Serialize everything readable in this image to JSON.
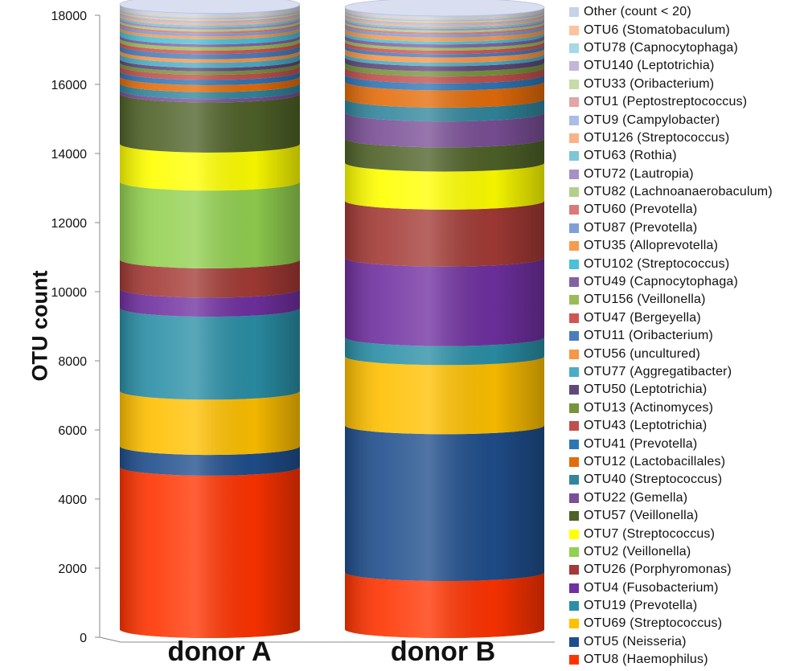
{
  "chart_data": {
    "type": "bar",
    "stacked": true,
    "style": "3d-cylinder",
    "categories": [
      "donor A",
      "donor B"
    ],
    "ylabel": "OTU count",
    "xlabel": "",
    "ylim": [
      0,
      18000
    ],
    "yticks": [
      0,
      2000,
      4000,
      6000,
      8000,
      10000,
      12000,
      14000,
      16000,
      18000
    ],
    "legend_position": "right",
    "series": [
      {
        "name": "OTU8 (Haemophilus)",
        "color": "#ff3300",
        "values": [
          4700,
          1650
        ]
      },
      {
        "name": "OTU5 (Neisseria)",
        "color": "#1f4e8c",
        "values": [
          600,
          4250
        ]
      },
      {
        "name": "OTU69 (Streptococcus)",
        "color": "#ffc000",
        "values": [
          1600,
          2000
        ]
      },
      {
        "name": "OTU19 (Prevotella)",
        "color": "#2a8fa6",
        "values": [
          2400,
          550
        ]
      },
      {
        "name": "OTU4 (Fusobacterium)",
        "color": "#7030a0",
        "values": [
          550,
          2300
        ]
      },
      {
        "name": "OTU26 (Porphyromonas)",
        "color": "#a33a35",
        "values": [
          850,
          1650
        ]
      },
      {
        "name": "OTU2 (Veillonella)",
        "color": "#92d050",
        "values": [
          2250,
          0
        ]
      },
      {
        "name": "OTU7 (Streptococcus)",
        "color": "#ffff00",
        "values": [
          1100,
          1100
        ]
      },
      {
        "name": "OTU57 (Veillonella)",
        "color": "#4f6228",
        "values": [
          1450,
          700
        ]
      },
      {
        "name": "OTU22 (Gemella)",
        "color": "#7a4f96",
        "values": [
          100,
          750
        ]
      },
      {
        "name": "OTU40 (Streptococcus)",
        "color": "#31859c",
        "values": [
          200,
          400
        ]
      },
      {
        "name": "OTU12 (Lactobacillales)",
        "color": "#e46c0a",
        "values": [
          200,
          500
        ]
      },
      {
        "name": "OTU41 (Prevotella)",
        "color": "#2e75b6",
        "values": [
          150,
          200
        ]
      },
      {
        "name": "OTU43 (Leptotrichia)",
        "color": "#c0504d",
        "values": [
          150,
          200
        ]
      },
      {
        "name": "OTU13 (Actinomyces)",
        "color": "#77933c",
        "values": [
          100,
          150
        ]
      },
      {
        "name": "OTU50 (Leptotrichia)",
        "color": "#60497a",
        "values": [
          100,
          150
        ]
      },
      {
        "name": "OTU77 (Aggregatibacter)",
        "color": "#4bacc6",
        "values": [
          150,
          100
        ]
      },
      {
        "name": "OTU56 (uncultured)",
        "color": "#f79646",
        "values": [
          100,
          150
        ]
      },
      {
        "name": "OTU11 (Oribacterium)",
        "color": "#4a7ebb",
        "values": [
          150,
          100
        ]
      },
      {
        "name": "OTU47 (Bergeyella)",
        "color": "#d05555",
        "values": [
          100,
          100
        ]
      },
      {
        "name": "OTU156 (Veillonella)",
        "color": "#9bbb59",
        "values": [
          100,
          80
        ]
      },
      {
        "name": "OTU49 (Capnocytophaga)",
        "color": "#8064a2",
        "values": [
          80,
          100
        ]
      },
      {
        "name": "OTU102 (Streptococcus)",
        "color": "#4bc0d9",
        "values": [
          150,
          80
        ]
      },
      {
        "name": "OTU35 (Alloprevotella)",
        "color": "#f79c4f",
        "values": [
          80,
          120
        ]
      },
      {
        "name": "OTU87 (Prevotella)",
        "color": "#7f9fd6",
        "values": [
          80,
          80
        ]
      },
      {
        "name": "OTU60 (Prevotella)",
        "color": "#d9797a",
        "values": [
          60,
          60
        ]
      },
      {
        "name": "OTU82 (Lachnoanaerobaculum)",
        "color": "#b3cf8a",
        "values": [
          60,
          60
        ]
      },
      {
        "name": "OTU72 (Lautropia)",
        "color": "#a591c4",
        "values": [
          60,
          50
        ]
      },
      {
        "name": "OTU63 (Rothia)",
        "color": "#7fc6d6",
        "values": [
          60,
          50
        ]
      },
      {
        "name": "OTU126 (Streptococcus)",
        "color": "#f9b384",
        "values": [
          50,
          40
        ]
      },
      {
        "name": "OTU9 (Campylobacter)",
        "color": "#a9bde6",
        "values": [
          40,
          40
        ]
      },
      {
        "name": "OTU1 (Peptostreptococcus)",
        "color": "#e3a5a5",
        "values": [
          40,
          40
        ]
      },
      {
        "name": "OTU33 (Oribacterium)",
        "color": "#c6dba7",
        "values": [
          40,
          40
        ]
      },
      {
        "name": "OTU140 (Leptotrichia)",
        "color": "#c3b6d9",
        "values": [
          40,
          40
        ]
      },
      {
        "name": "OTU78 (Capnocytophaga)",
        "color": "#a6d8e5",
        "values": [
          30,
          30
        ]
      },
      {
        "name": "OTU6 (Stomatobaculum)",
        "color": "#fbc4a0",
        "values": [
          30,
          30
        ]
      },
      {
        "name": "Other (count < 20)",
        "color": "#c5d3ea",
        "values": [
          80,
          60
        ]
      }
    ]
  }
}
